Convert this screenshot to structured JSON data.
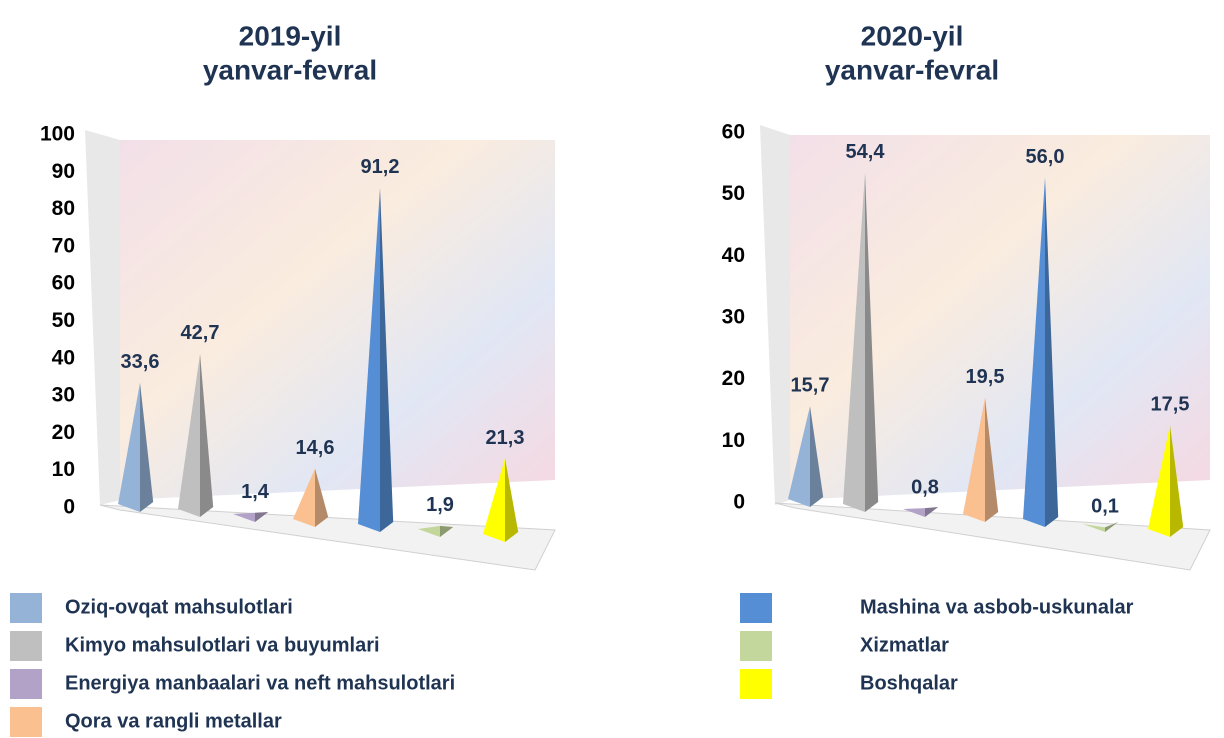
{
  "chart_data": [
    {
      "type": "pyramid",
      "title": [
        "2019-yil",
        "yanvar-fevral"
      ],
      "values": [
        33.6,
        42.7,
        1.4,
        14.6,
        91.2,
        1.9,
        21.3
      ],
      "value_labels": [
        "33,6",
        "42,7",
        "1,4",
        "14,6",
        "91,2",
        "1,9",
        "21,3"
      ],
      "ylim": [
        0,
        100
      ],
      "yticks": [
        0,
        10,
        20,
        30,
        40,
        50,
        60,
        70,
        80,
        90,
        100
      ]
    },
    {
      "type": "pyramid",
      "title": [
        "2020-yil",
        "yanvar-fevral"
      ],
      "values": [
        15.7,
        54.4,
        0.8,
        19.5,
        56.0,
        0.1,
        17.5
      ],
      "value_labels": [
        "15,7",
        "54,4",
        "0,8",
        "19,5",
        "56,0",
        "0,1",
        "17,5"
      ],
      "ylim": [
        0,
        60
      ],
      "yticks": [
        0,
        10,
        20,
        30,
        40,
        50,
        60
      ]
    }
  ],
  "legend": {
    "items": [
      {
        "name": "Oziq-ovqat mahsulotlari",
        "color": "#95b3d7"
      },
      {
        "name": "Kimyo mahsulotlari va buyumlari",
        "color": "#bfbfbf"
      },
      {
        "name": "Energiya manbaalari va neft mahsulotlari",
        "color": "#b3a2c7"
      },
      {
        "name": "Qora va rangli metallar",
        "color": "#fac090"
      },
      {
        "name": "Mashina va asbob-uskunalar",
        "color": "#558ed5"
      },
      {
        "name": "Xizmatlar",
        "color": "#c3d69b"
      },
      {
        "name": "Boshqalar",
        "color": "#ffff00"
      }
    ]
  }
}
